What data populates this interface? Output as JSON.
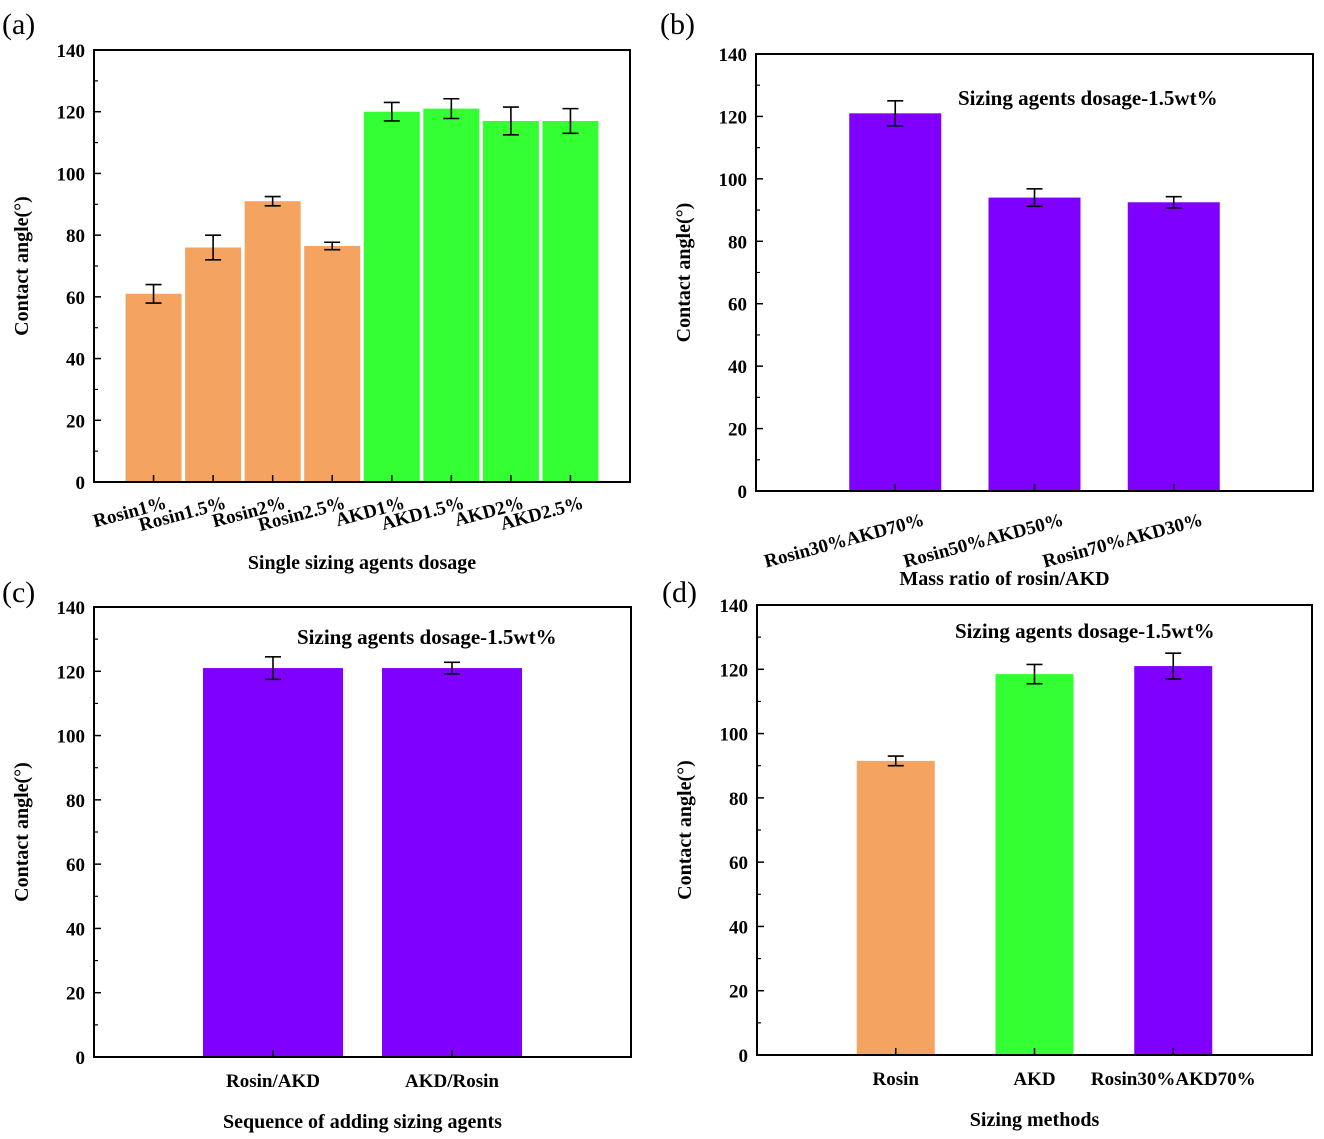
{
  "colors": {
    "rosin": "#F4A460",
    "akd": "#33FF33",
    "mix": "#8000FF",
    "frame": "#000000"
  },
  "chart_data": [
    {
      "type": "bar",
      "panel": "(a)",
      "title": "",
      "annotation": "",
      "xlabel": "Single sizing agents dosage",
      "ylabel": "Contact angle(°)",
      "ylim": [
        0,
        140
      ],
      "yticks": [
        "0",
        "20",
        "40",
        "60",
        "80",
        "100",
        "120",
        "140"
      ],
      "categories": [
        "Rosin1%",
        "Rosin1.5%",
        "Rosin2%",
        "Rosin2.5%",
        "AKD1%",
        "AKD1.5%",
        "AKD2%",
        "AKD2.5%"
      ],
      "values": [
        61,
        76,
        91,
        76.5,
        120,
        121,
        117,
        117
      ],
      "errors": [
        3,
        4,
        1.5,
        1.2,
        3,
        3.2,
        4.5,
        4
      ],
      "bar_colors": [
        "rosin",
        "rosin",
        "rosin",
        "rosin",
        "akd",
        "akd",
        "akd",
        "akd"
      ]
    },
    {
      "type": "bar",
      "panel": "(b)",
      "annotation": "Sizing agents dosage-1.5wt%",
      "xlabel": "Mass ratio of rosin/AKD",
      "ylabel": "Contact angle(°)",
      "ylim": [
        0,
        140
      ],
      "yticks": [
        "0",
        "20",
        "40",
        "60",
        "80",
        "100",
        "120",
        "140"
      ],
      "categories": [
        "Rosin30%AKD70%",
        "Rosin50%AKD50%",
        "Rosin70%AKD30%"
      ],
      "values": [
        121,
        94,
        92.5
      ],
      "errors": [
        4,
        2.8,
        1.8
      ],
      "bar_colors": [
        "mix",
        "mix",
        "mix"
      ]
    },
    {
      "type": "bar",
      "panel": "(c)",
      "annotation": "Sizing agents dosage-1.5wt%",
      "xlabel": "Sequence of adding sizing agents",
      "ylabel": "Contact angle(°)",
      "ylim": [
        0,
        140
      ],
      "yticks": [
        "0",
        "20",
        "40",
        "60",
        "80",
        "100",
        "120",
        "140"
      ],
      "categories": [
        "Rosin/AKD",
        "AKD/Rosin"
      ],
      "values": [
        121,
        121
      ],
      "errors": [
        3.5,
        1.8
      ],
      "bar_colors": [
        "mix",
        "mix"
      ]
    },
    {
      "type": "bar",
      "panel": "(d)",
      "annotation": "Sizing agents dosage-1.5wt%",
      "xlabel": "Sizing methods",
      "ylabel": "Contact angle(°)",
      "ylim": [
        0,
        140
      ],
      "yticks": [
        "0",
        "20",
        "40",
        "60",
        "80",
        "100",
        "120",
        "140"
      ],
      "categories": [
        "Rosin",
        "AKD",
        "Rosin30%AKD70%"
      ],
      "values": [
        91.5,
        118.5,
        121
      ],
      "errors": [
        1.5,
        3,
        4
      ],
      "bar_colors": [
        "rosin",
        "akd",
        "mix"
      ]
    }
  ]
}
